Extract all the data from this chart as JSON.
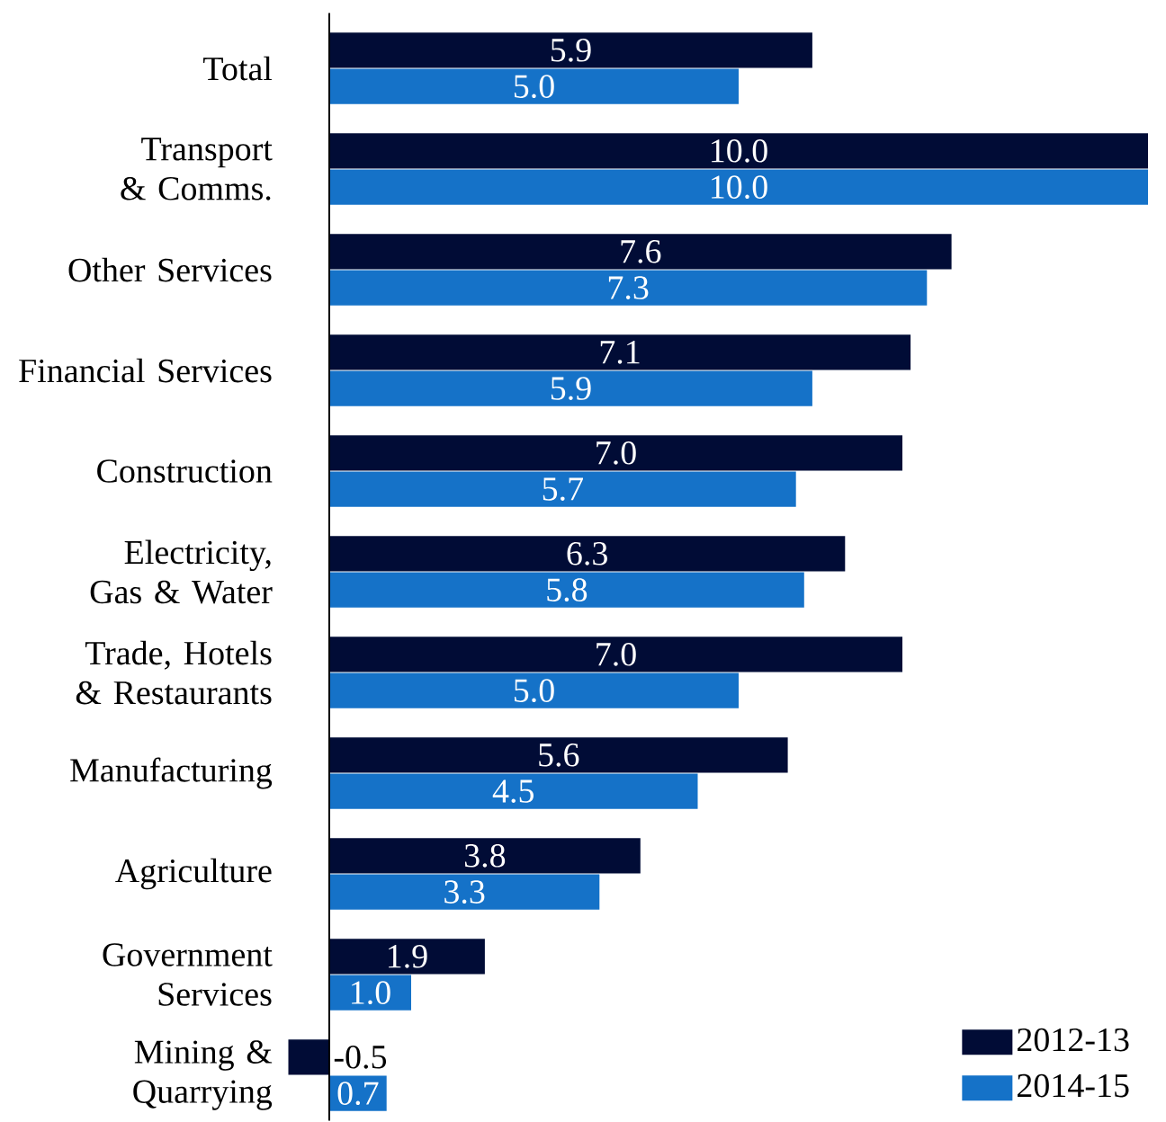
{
  "chart_data": {
    "type": "bar",
    "orientation": "horizontal",
    "categories": [
      "Total",
      "Transport & Comms.",
      "Other Services",
      "Financial Services",
      "Construction",
      "Electricity, Gas & Water",
      "Trade, Hotels & Restaurants",
      "Manufacturing",
      "Agriculture",
      "Government Services",
      "Mining & Quarrying"
    ],
    "series": [
      {
        "name": "2012-13",
        "color": "#010c36",
        "values": [
          5.9,
          10.0,
          7.6,
          7.1,
          7.0,
          6.3,
          7.0,
          5.6,
          3.8,
          1.9,
          -0.5
        ],
        "value_labels": [
          "5.9",
          "10.0",
          "7.6",
          "7.1",
          "7.0",
          "6.3",
          "7.0",
          "5.6",
          "3.8",
          "1.9",
          "-0.5"
        ]
      },
      {
        "name": "2014-15",
        "color": "#1572c8",
        "values": [
          5.0,
          10.0,
          7.3,
          5.9,
          5.7,
          5.8,
          5.0,
          4.5,
          3.3,
          1.0,
          0.7
        ],
        "value_labels": [
          "5.0",
          "10.0",
          "7.3",
          "5.9",
          "5.7",
          "5.8",
          "5.0",
          "4.5",
          "3.3",
          "1.0",
          "0.7"
        ]
      }
    ],
    "xlim": [
      -0.55,
      10
    ],
    "tick_labels": "y",
    "legend": "bottom right"
  }
}
